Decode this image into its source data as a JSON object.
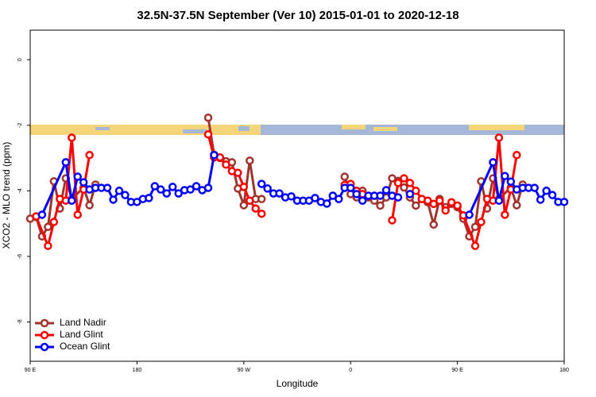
{
  "chart_data": {
    "type": "line",
    "title": "32.5N-37.5N September (Ver 10)   2015-01-01 to 2020-12-18",
    "x_label": "Longitude",
    "y_label": "XCO2 - MLO trend (ppm)",
    "xlim": [
      90,
      540
    ],
    "ylim": [
      -9.2,
      0.9
    ],
    "xticks": [
      {
        "value": 90,
        "label": "90 E"
      },
      {
        "value": 180,
        "label": "180"
      },
      {
        "value": 270,
        "label": "90 W"
      },
      {
        "value": 360,
        "label": "0"
      },
      {
        "value": 450,
        "label": "90 E"
      },
      {
        "value": 540,
        "label": "180"
      }
    ],
    "yticks": [
      0,
      -2,
      -4,
      -6,
      -8
    ],
    "legend": "bottom-left",
    "series": [
      {
        "name": "Land Nadir",
        "color": "#a0342e",
        "x": [
          90,
          95,
          100,
          105,
          110,
          115,
          120,
          125,
          135,
          140,
          145,
          150,
          240,
          245,
          250,
          255,
          260,
          265,
          270,
          275,
          280,
          285,
          290,
          355,
          360,
          365,
          370,
          375,
          380,
          385,
          390,
          395,
          400,
          405,
          410,
          415,
          420,
          425,
          430,
          435,
          440,
          445,
          450,
          455,
          460,
          465,
          470,
          475,
          480,
          485,
          495,
          500,
          505
        ],
        "values": [
          -4.85,
          -4.8,
          -5.39,
          -5.1,
          -3.71,
          -4.54,
          -3.62,
          -4.25,
          -3.9,
          -4.44,
          -3.81,
          null,
          -1.77,
          -2.9,
          -3.0,
          -3.1,
          -3.13,
          -3.93,
          -4.44,
          -3.08,
          -4.25,
          -4.25,
          null,
          -3.57,
          -4.1,
          -4.2,
          -4.0,
          -4.2,
          -4.3,
          -4.45,
          -4.2,
          -3.62,
          -3.7,
          -3.9,
          -4.2,
          -4.45,
          -4.25,
          -4.35,
          -5.03,
          -4.25,
          -4.5,
          -4.4,
          -4.5,
          -4.85,
          -5.39,
          -5.1,
          -3.71,
          -4.54,
          -3.62,
          -4.25,
          -3.9,
          -4.44,
          -3.81
        ]
      },
      {
        "name": "Land Glint",
        "color": "#ff0000",
        "x": [
          95,
          105,
          110,
          115,
          120,
          125,
          130,
          135,
          140,
          145,
          240,
          245,
          250,
          255,
          260,
          265,
          270,
          275,
          280,
          285,
          290,
          355,
          360,
          365,
          370,
          375,
          395,
          400,
          405,
          410,
          415,
          420,
          425,
          430,
          435,
          440,
          445,
          450,
          455,
          465,
          470,
          475,
          480,
          485,
          490,
          495,
          500
        ],
        "values": [
          -4.78,
          -5.68,
          -4.95,
          -4.25,
          -4.3,
          -2.38,
          -4.73,
          -3.96,
          -2.91,
          null,
          -2.28,
          -2.98,
          -2.98,
          -3.2,
          -3.4,
          -3.45,
          -3.88,
          -4.3,
          -4.54,
          -4.7,
          null,
          -3.82,
          -3.79,
          -4.0,
          -4.1,
          null,
          -4.9,
          -3.76,
          -3.62,
          -3.76,
          -4.0,
          -4.25,
          -4.3,
          -4.4,
          -4.3,
          -4.6,
          -4.35,
          -4.45,
          -4.75,
          -5.68,
          -4.95,
          -4.25,
          -4.3,
          -2.38,
          -4.73,
          -3.96,
          -2.91
        ]
      },
      {
        "name": "Ocean Glint",
        "color": "#0000ff",
        "x": [
          100,
          120,
          125,
          130,
          135,
          140,
          145,
          150,
          155,
          160,
          165,
          170,
          175,
          180,
          185,
          190,
          195,
          200,
          205,
          210,
          215,
          220,
          225,
          230,
          235,
          240,
          245,
          265,
          285,
          290,
          295,
          300,
          305,
          310,
          315,
          320,
          325,
          330,
          335,
          340,
          345,
          350,
          355,
          360,
          365,
          370,
          375,
          380,
          385,
          390,
          395,
          400,
          405,
          410,
          435,
          460,
          480,
          485,
          490,
          495,
          500,
          505,
          510,
          515,
          520,
          525,
          530,
          535,
          540
        ],
        "values": [
          -4.73,
          -3.13,
          -4.3,
          -3.57,
          -3.74,
          -3.96,
          -3.91,
          -3.91,
          -3.91,
          -4.27,
          -4.0,
          -4.13,
          -4.34,
          -4.34,
          -4.25,
          -4.22,
          -3.86,
          -3.96,
          -4.08,
          -3.88,
          -4.08,
          -3.98,
          -3.96,
          -3.86,
          -3.98,
          -3.91,
          -2.91,
          null,
          -3.79,
          -3.93,
          -4.08,
          -4.08,
          -4.2,
          -4.17,
          -4.3,
          -4.3,
          -4.3,
          -4.22,
          -4.34,
          -4.39,
          -4.15,
          -4.25,
          -3.91,
          -3.91,
          -4.1,
          -4.3,
          -4.15,
          -4.15,
          -4.15,
          -3.98,
          -4.15,
          -4.2,
          null,
          -4.1,
          null,
          -4.73,
          -3.13,
          -4.3,
          -3.55,
          -3.72,
          -3.96,
          -3.91,
          -3.91,
          -3.91,
          -4.27,
          -4.0,
          -4.13,
          -4.34,
          -4.34
        ]
      }
    ]
  }
}
